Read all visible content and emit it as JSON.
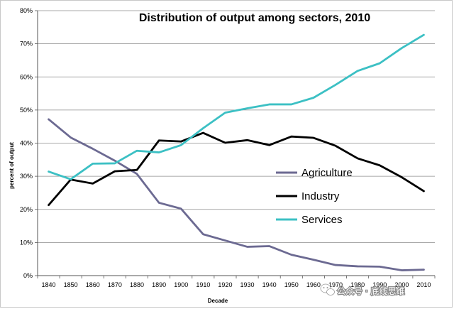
{
  "chart_data": {
    "type": "line",
    "title": "Distribution of output among sectors, 2010",
    "xlabel": "Decade",
    "ylabel": "percent of output",
    "categories": [
      "1840",
      "1850",
      "1860",
      "1870",
      "1880",
      "1890",
      "1900",
      "1910",
      "1920",
      "1930",
      "1940",
      "1950",
      "1960",
      "1970",
      "1980",
      "1990",
      "2000",
      "2010"
    ],
    "ylim": [
      0,
      80
    ],
    "yticks": [
      "0%",
      "10%",
      "20%",
      "30%",
      "40%",
      "50%",
      "60%",
      "70%",
      "80%"
    ],
    "grid": "horizontal",
    "legend_position": "right-middle",
    "series": [
      {
        "name": "Agriculture",
        "color": "#6c6a92",
        "values": [
          47.2,
          41.7,
          38.3,
          34.7,
          30.7,
          22.0,
          20.2,
          12.5,
          10.6,
          8.7,
          8.9,
          6.3,
          4.8,
          3.2,
          2.8,
          2.7,
          1.6,
          1.8
        ]
      },
      {
        "name": "Industry",
        "color": "#000000",
        "values": [
          21.3,
          29.0,
          27.8,
          31.5,
          31.9,
          40.8,
          40.5,
          43.1,
          40.1,
          40.9,
          39.4,
          42.0,
          41.6,
          39.2,
          35.4,
          33.3,
          29.7,
          25.5
        ]
      },
      {
        "name": "Services",
        "color": "#3cc0c4",
        "values": [
          31.4,
          29.1,
          33.8,
          33.9,
          37.7,
          37.2,
          39.4,
          44.5,
          49.2,
          50.5,
          51.7,
          51.7,
          53.7,
          57.6,
          61.8,
          64.1,
          68.7,
          72.7
        ]
      }
    ]
  },
  "watermark": {
    "text": "公众号 · 底线思维",
    "icon": "wechat-icon"
  }
}
